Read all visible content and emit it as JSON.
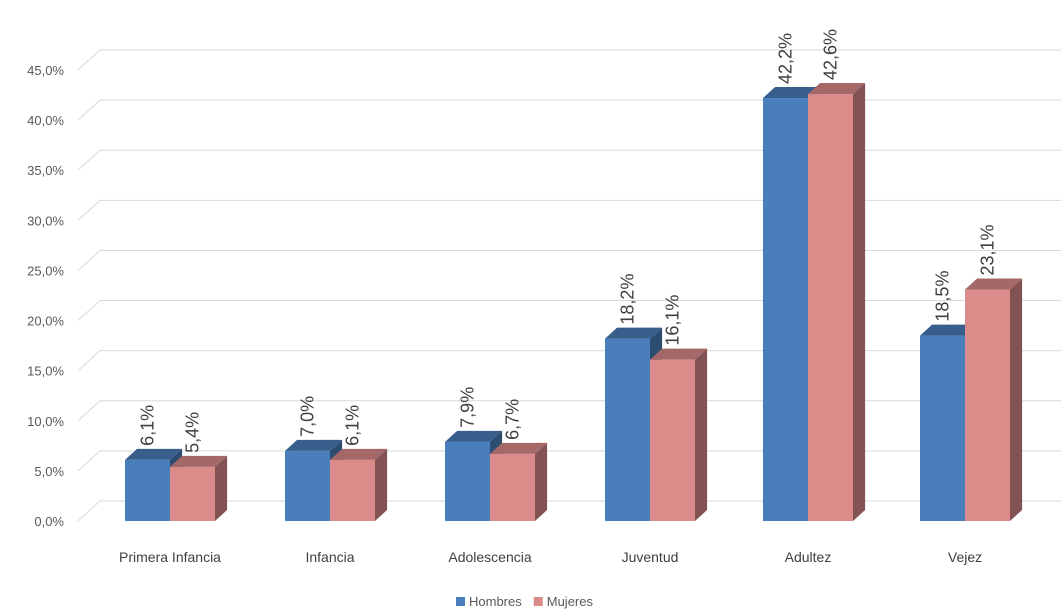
{
  "chart_data": {
    "type": "bar",
    "title": "",
    "xlabel": "",
    "ylabel": "",
    "categories": [
      "Primera Infancia",
      "Infancia",
      "Adolescencia",
      "Juventud",
      "Adultez",
      "Vejez"
    ],
    "series": [
      {
        "name": "Hombres",
        "color": "#4A7EBB",
        "values": [
          6.1,
          7.0,
          7.9,
          18.2,
          42.2,
          18.5
        ],
        "labels": [
          "6,1%",
          "7,0%",
          "7,9%",
          "18,2%",
          "42,2%",
          "18,5%"
        ]
      },
      {
        "name": "Mujeres",
        "color": "#DA8B8A",
        "values": [
          5.4,
          6.1,
          6.7,
          16.1,
          42.6,
          23.1
        ],
        "labels": [
          "5,4%",
          "6,1%",
          "6,7%",
          "16,1%",
          "42,6%",
          "23,1%"
        ]
      }
    ],
    "ylim": [
      0,
      45
    ],
    "yticks": [
      "0,0%",
      "5,0%",
      "10,0%",
      "15,0%",
      "20,0%",
      "25,0%",
      "30,0%",
      "35,0%",
      "40,0%",
      "45,0%"
    ],
    "grid": true,
    "legend_position": "bottom",
    "style": "3d-column"
  }
}
